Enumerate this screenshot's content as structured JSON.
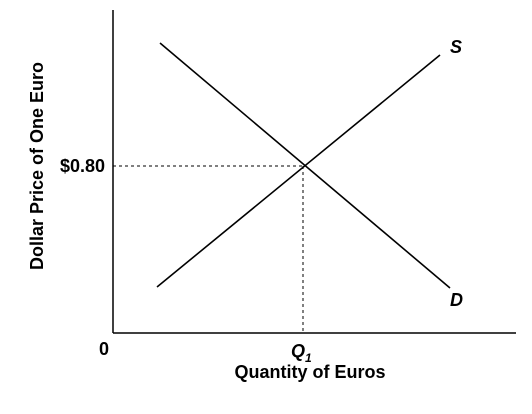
{
  "diagram": {
    "type": "supply-demand",
    "x_axis_label": "Quantity of Euros",
    "y_axis_label": "Dollar Price of One Euro",
    "origin_label": "0",
    "equilibrium_price_label": "$0.80",
    "equilibrium_quantity_label": "Q",
    "equilibrium_quantity_subscript": "1",
    "supply_label": "S",
    "demand_label": "D",
    "colors": {
      "lines": "#000000",
      "guides": "#000000",
      "background": "#ffffff"
    }
  }
}
